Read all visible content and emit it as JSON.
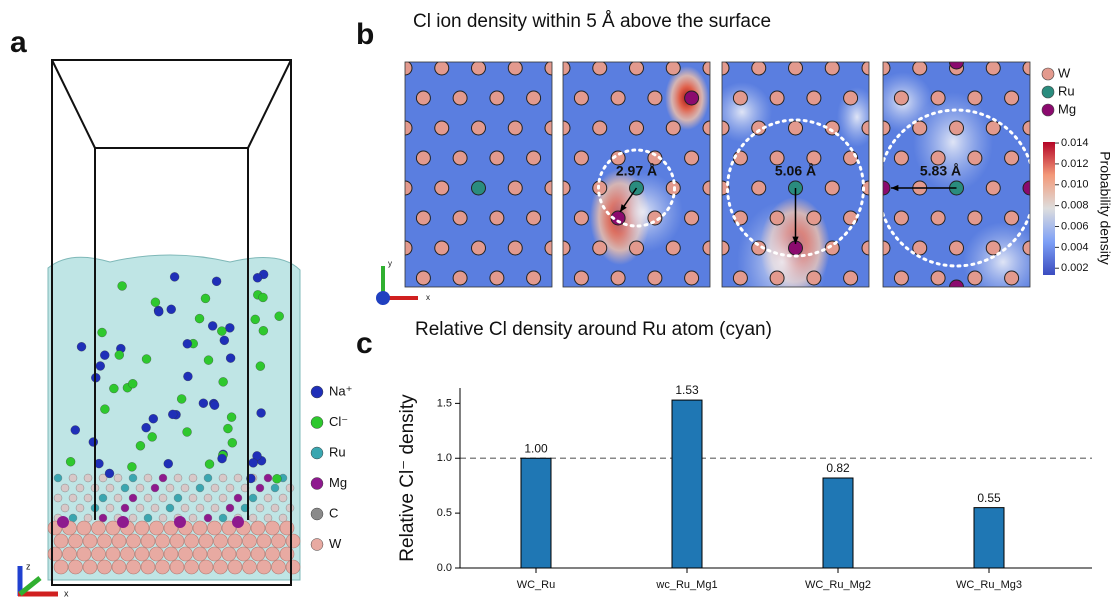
{
  "panel_a": {
    "label": "a",
    "axes": [
      "z",
      "x"
    ],
    "legend": [
      {
        "name": "Na⁺",
        "color": "#1f2fb8"
      },
      {
        "name": "Cl⁻",
        "color": "#2ec82e"
      },
      {
        "name": "Ru",
        "color": "#3aa6b0"
      },
      {
        "name": "Mg",
        "color": "#8e1a8e"
      },
      {
        "name": "C",
        "color": "#8a8a8a"
      },
      {
        "name": "W",
        "color": "#e8aaa2"
      }
    ]
  },
  "panel_b": {
    "label": "b",
    "title": "Cl ion density within 5 Å above the surface",
    "axes": [
      "y",
      "x"
    ],
    "distances": [
      "2.97 Å",
      "5.06 Å",
      "5.83 Å"
    ],
    "legend": [
      {
        "name": "W",
        "color": "#e39a8e"
      },
      {
        "name": "Ru",
        "color": "#2a8c7e"
      },
      {
        "name": "Mg",
        "color": "#8b0a6e"
      }
    ],
    "colorbar": {
      "label": "Probability density",
      "lim": [
        0.00135,
        0.0141
      ],
      "ticks": [
        0.002,
        0.004,
        0.006,
        0.008,
        {
          "value": 0.01,
          "label": "0.010"
        },
        0.012,
        0.014
      ]
    }
  },
  "panel_c_label": "c",
  "chart_data": {
    "type": "bar",
    "title": "Relative Cl density around Ru atom (cyan)",
    "y_label": "Relative Cl⁻ density",
    "categories": [
      "WC_Ru",
      "wc_Ru_Mg1",
      "WC_Ru_Mg2",
      "WC_Ru_Mg3"
    ],
    "values": [
      1.0,
      1.53,
      0.82,
      0.55
    ],
    "value_labels": [
      "1.00",
      "1.53",
      "0.82",
      "0.55"
    ],
    "color": "#1f77b4",
    "ylim": [
      0,
      1.64
    ],
    "yticks": [
      {
        "value": 0,
        "label": "0.0"
      },
      0.5,
      {
        "value": 1,
        "label": "1.0"
      },
      1.5
    ],
    "hline": 1
  }
}
